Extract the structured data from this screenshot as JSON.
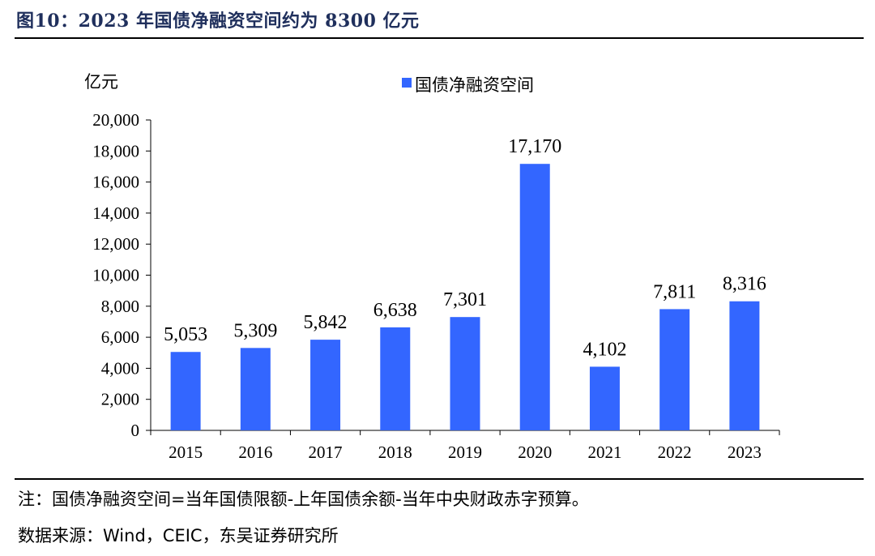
{
  "figure": {
    "title": "图10：2023 年国债净融资空间约为 8300 亿元",
    "note": "注：国债净融资空间=当年国债限额-上年国债余额-当年中央财政赤字预算。",
    "source": "数据来源：Wind，CEIC，东吴证券研究所"
  },
  "chart_data": {
    "type": "bar",
    "title": "",
    "unit_label": "亿元",
    "xlabel": "",
    "ylabel": "亿元",
    "categories": [
      "2015",
      "2016",
      "2017",
      "2018",
      "2019",
      "2020",
      "2021",
      "2022",
      "2023"
    ],
    "series": [
      {
        "name": "国债净融资空间",
        "values": [
          5053,
          5309,
          5842,
          6638,
          7301,
          17170,
          4102,
          7811,
          8316
        ],
        "data_labels": [
          "5,053",
          "5,309",
          "5,842",
          "6,638",
          "7,301",
          "17,170",
          "4,102",
          "7,811",
          "8,316"
        ]
      }
    ],
    "ylim": [
      0,
      20000
    ],
    "yticks": [
      0,
      2000,
      4000,
      6000,
      8000,
      10000,
      12000,
      14000,
      16000,
      18000,
      20000
    ],
    "ytick_labels": [
      "0",
      "2,000",
      "4,000",
      "6,000",
      "8,000",
      "10,000",
      "12,000",
      "14,000",
      "16,000",
      "18,000",
      "20,000"
    ],
    "grid": false,
    "legend_position": "top-center",
    "colors": {
      "bar": "#3366ff",
      "axis": "#000000",
      "title": "#1f2f5c"
    }
  }
}
